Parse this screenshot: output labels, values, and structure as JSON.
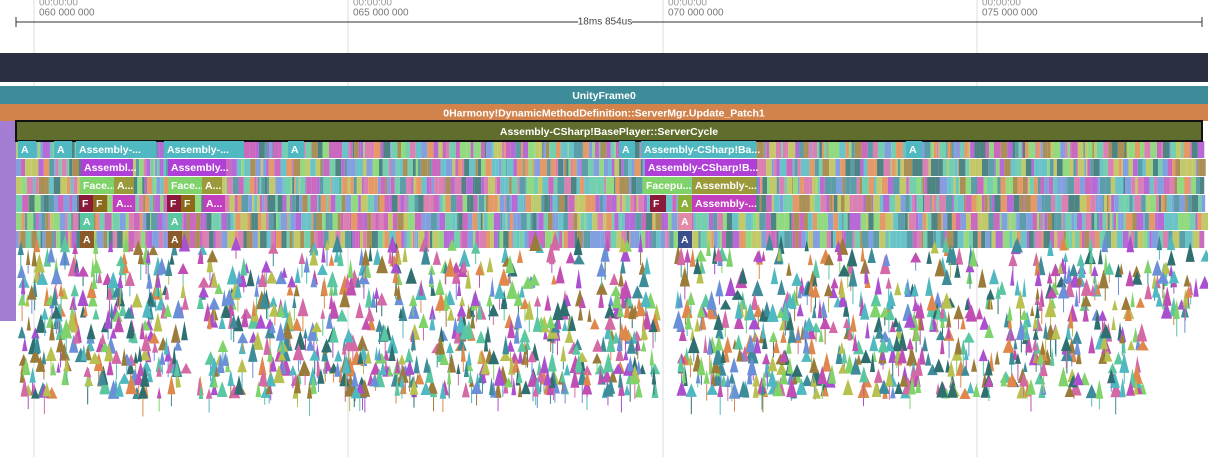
{
  "timeline": {
    "ticks": [
      {
        "time": "00:00:00",
        "ns": "060 000 000"
      },
      {
        "time": "00:00:00",
        "ns": "065 000 000"
      },
      {
        "time": "00:00:00",
        "ns": "070 000 000"
      },
      {
        "time": "00:00:00",
        "ns": "075 000 000"
      }
    ],
    "span": "18ms 854us"
  },
  "frames": [
    {
      "label": "UnityFrame0"
    },
    {
      "label": "0Harmony!DynamicMethodDefinition::ServerMgr.Update_Patch1"
    },
    {
      "label": "Assembly-CSharp!BasePlayer::ServerCycle"
    }
  ],
  "blocks": [
    {
      "label": "A"
    },
    {
      "label": "A"
    },
    {
      "label": "Assembly-..."
    },
    {
      "label": "Assembly-..."
    },
    {
      "label": "A"
    },
    {
      "label": "A"
    },
    {
      "label": "Assembly-CSharp!Ba..."
    },
    {
      "label": "A"
    },
    {
      "label": "Assembl..."
    },
    {
      "label": "Assembly..."
    },
    {
      "label": "Assembly-CSharp!B..."
    },
    {
      "label": "Face..."
    },
    {
      "label": "A..."
    },
    {
      "label": "Face..."
    },
    {
      "label": "A..."
    },
    {
      "label": "Facepu..."
    },
    {
      "label": "Assembly-..."
    },
    {
      "label": "F"
    },
    {
      "label": "F"
    },
    {
      "label": "A..."
    },
    {
      "label": "F"
    },
    {
      "label": "F"
    },
    {
      "label": "A..."
    },
    {
      "label": "F"
    },
    {
      "label": "A"
    },
    {
      "label": "Assembly-..."
    },
    {
      "label": "A"
    },
    {
      "label": "A"
    },
    {
      "label": "A"
    },
    {
      "label": "A"
    },
    {
      "label": "A"
    },
    {
      "label": "A"
    }
  ]
}
